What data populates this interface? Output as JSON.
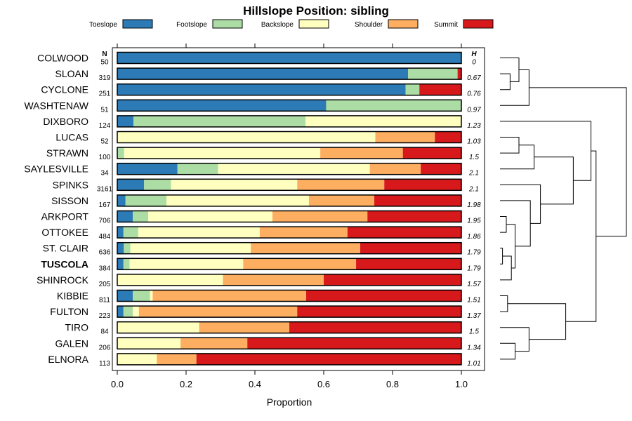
{
  "chart_data": {
    "type": "bar",
    "stacked": true,
    "orientation": "horizontal",
    "title": "Hillslope Position: sibling",
    "xlabel": "Proportion",
    "xlim": [
      0,
      1
    ],
    "xticks": [
      "0.0",
      "0.2",
      "0.4",
      "0.6",
      "0.8",
      "1.0"
    ],
    "n_header": "N",
    "h_header": "H",
    "legend_position": "top",
    "bold_category": "TUSCOLA",
    "series": [
      {
        "name": "Toeslope",
        "color": "#2c7bb6",
        "values": [
          1.0,
          0.845,
          0.838,
          0.607,
          0.047,
          0.0,
          0.0,
          0.175,
          0.078,
          0.024,
          0.045,
          0.018,
          0.019,
          0.018,
          0.0,
          0.045,
          0.018,
          0.0,
          0.0,
          0.0
        ]
      },
      {
        "name": "Footslope",
        "color": "#abdda4",
        "values": [
          0.0,
          0.144,
          0.04,
          0.393,
          0.5,
          0.0,
          0.02,
          0.118,
          0.078,
          0.119,
          0.045,
          0.043,
          0.019,
          0.018,
          0.0,
          0.05,
          0.027,
          0.0,
          0.0,
          0.0
        ]
      },
      {
        "name": "Backslope",
        "color": "#ffffbf",
        "values": [
          0.0,
          0.0,
          0.0,
          0.0,
          0.453,
          0.75,
          0.57,
          0.441,
          0.367,
          0.414,
          0.361,
          0.353,
          0.35,
          0.33,
          0.307,
          0.008,
          0.018,
          0.238,
          0.184,
          0.115
        ]
      },
      {
        "name": "Shoulder",
        "color": "#fdae61",
        "values": [
          0.0,
          0.0,
          0.0,
          0.0,
          0.0,
          0.173,
          0.24,
          0.148,
          0.253,
          0.19,
          0.276,
          0.255,
          0.318,
          0.328,
          0.293,
          0.446,
          0.46,
          0.262,
          0.194,
          0.115
        ]
      },
      {
        "name": "Summit",
        "color": "#d7191c",
        "values": [
          0.0,
          0.011,
          0.122,
          0.0,
          0.0,
          0.077,
          0.17,
          0.118,
          0.224,
          0.253,
          0.273,
          0.331,
          0.294,
          0.306,
          0.4,
          0.451,
          0.477,
          0.5,
          0.622,
          0.77
        ]
      }
    ],
    "categories": [
      "COLWOOD",
      "SLOAN",
      "CYCLONE",
      "WASHTENAW",
      "DIXBORO",
      "LUCAS",
      "STRAWN",
      "SAYLESVILLE",
      "SPINKS",
      "SISSON",
      "ARKPORT",
      "OTTOKEE",
      "ST. CLAIR",
      "TUSCOLA",
      "SHINROCK",
      "KIBBIE",
      "FULTON",
      "TIRO",
      "GALEN",
      "ELNORA"
    ],
    "n": [
      "50",
      "319",
      "251",
      "51",
      "124",
      "52",
      "100",
      "34",
      "3161",
      "167",
      "706",
      "484",
      "636",
      "384",
      "205",
      "811",
      "223",
      "84",
      "206",
      "113"
    ],
    "h": [
      "0",
      "0.67",
      "0.76",
      "0.97",
      "1.23",
      "1.03",
      "1.5",
      "2.1",
      "2.1",
      "1.98",
      "1.95",
      "1.86",
      "1.79",
      "1.79",
      "1.57",
      "1.51",
      "1.37",
      "1.5",
      "1.34",
      "1.01"
    ],
    "dendrogram": {
      "merges": [
        {
          "a": "l1",
          "b": "l2",
          "height": 0.08
        },
        {
          "a": "m0",
          "b": "l0",
          "height": 0.15
        },
        {
          "a": "m1",
          "b": "l3",
          "height": 0.23
        },
        {
          "a": "l5",
          "b": "l6",
          "height": 0.15
        },
        {
          "a": "m3",
          "b": "l7",
          "height": 0.27
        },
        {
          "a": "l10",
          "b": "l11",
          "height": 0.05
        },
        {
          "a": "l12",
          "b": "l13",
          "height": 0.02
        },
        {
          "a": "m6",
          "b": "l14",
          "height": 0.09
        },
        {
          "a": "m5",
          "b": "m7",
          "height": 0.12
        },
        {
          "a": "l9",
          "b": "m8",
          "height": 0.24
        },
        {
          "a": "l8",
          "b": "m9",
          "height": 0.32
        },
        {
          "a": "m4",
          "b": "m10",
          "height": 0.58
        },
        {
          "a": "l4",
          "b": "m11",
          "height": 0.72
        },
        {
          "a": "l15",
          "b": "l16",
          "height": 0.06
        },
        {
          "a": "l18",
          "b": "l19",
          "height": 0.12
        },
        {
          "a": "l17",
          "b": "m14",
          "height": 0.23
        },
        {
          "a": "m13",
          "b": "m15",
          "height": 0.52
        },
        {
          "a": "m12",
          "b": "m16",
          "height": 0.76
        },
        {
          "a": "m2",
          "b": "m17",
          "height": 1.0
        }
      ]
    }
  }
}
